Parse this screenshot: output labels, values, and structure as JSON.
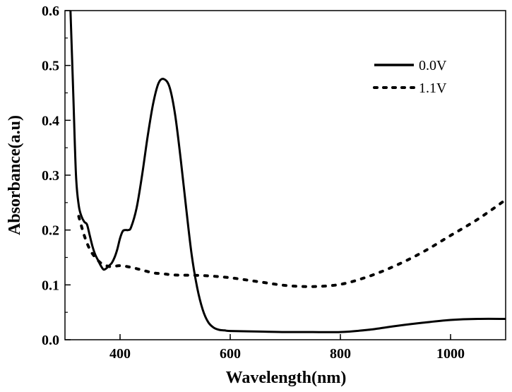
{
  "chart_data": {
    "type": "line",
    "title": "",
    "xlabel": "Wavelength(nm)",
    "ylabel": "Absorbance(a.u)",
    "xlim": [
      300,
      1100
    ],
    "ylim": [
      0.0,
      0.6
    ],
    "x_ticks": [
      400,
      600,
      800,
      1000
    ],
    "x_tick_labels": [
      "400",
      "600",
      "800",
      "1000"
    ],
    "y_ticks": [
      0.0,
      0.1,
      0.2,
      0.3,
      0.4,
      0.5,
      0.6
    ],
    "y_tick_labels": [
      "0.0",
      "0.1",
      "0.2",
      "0.3",
      "0.4",
      "0.5",
      "0.6"
    ],
    "grid": false,
    "legend_position": "top-right",
    "series": [
      {
        "name": "0.0V",
        "style": "solid",
        "color": "#000000",
        "x": [
          310,
          315,
          320,
          325,
          330,
          335,
          340,
          345,
          350,
          355,
          360,
          365,
          370,
          375,
          380,
          385,
          390,
          395,
          400,
          405,
          410,
          415,
          420,
          430,
          440,
          450,
          460,
          470,
          480,
          490,
          500,
          510,
          520,
          530,
          540,
          550,
          560,
          570,
          580,
          590,
          600,
          650,
          700,
          750,
          800,
          850,
          900,
          950,
          1000,
          1050,
          1100
        ],
        "y": [
          0.6,
          0.45,
          0.3,
          0.245,
          0.225,
          0.215,
          0.21,
          0.19,
          0.17,
          0.155,
          0.145,
          0.135,
          0.128,
          0.13,
          0.135,
          0.14,
          0.15,
          0.165,
          0.185,
          0.198,
          0.2,
          0.2,
          0.205,
          0.24,
          0.3,
          0.37,
          0.43,
          0.468,
          0.475,
          0.46,
          0.41,
          0.33,
          0.24,
          0.155,
          0.095,
          0.055,
          0.032,
          0.022,
          0.018,
          0.017,
          0.016,
          0.015,
          0.014,
          0.014,
          0.014,
          0.018,
          0.025,
          0.031,
          0.036,
          0.038,
          0.038
        ]
      },
      {
        "name": "1.1V",
        "style": "dotted",
        "color": "#000000",
        "x": [
          325,
          335,
          345,
          355,
          365,
          375,
          385,
          400,
          420,
          440,
          460,
          480,
          500,
          550,
          600,
          650,
          700,
          750,
          800,
          850,
          900,
          950,
          1000,
          1050,
          1100
        ],
        "y": [
          0.225,
          0.19,
          0.165,
          0.15,
          0.14,
          0.135,
          0.133,
          0.135,
          0.132,
          0.127,
          0.122,
          0.12,
          0.118,
          0.117,
          0.113,
          0.106,
          0.099,
          0.097,
          0.101,
          0.115,
          0.135,
          0.16,
          0.19,
          0.22,
          0.255
        ]
      }
    ]
  }
}
